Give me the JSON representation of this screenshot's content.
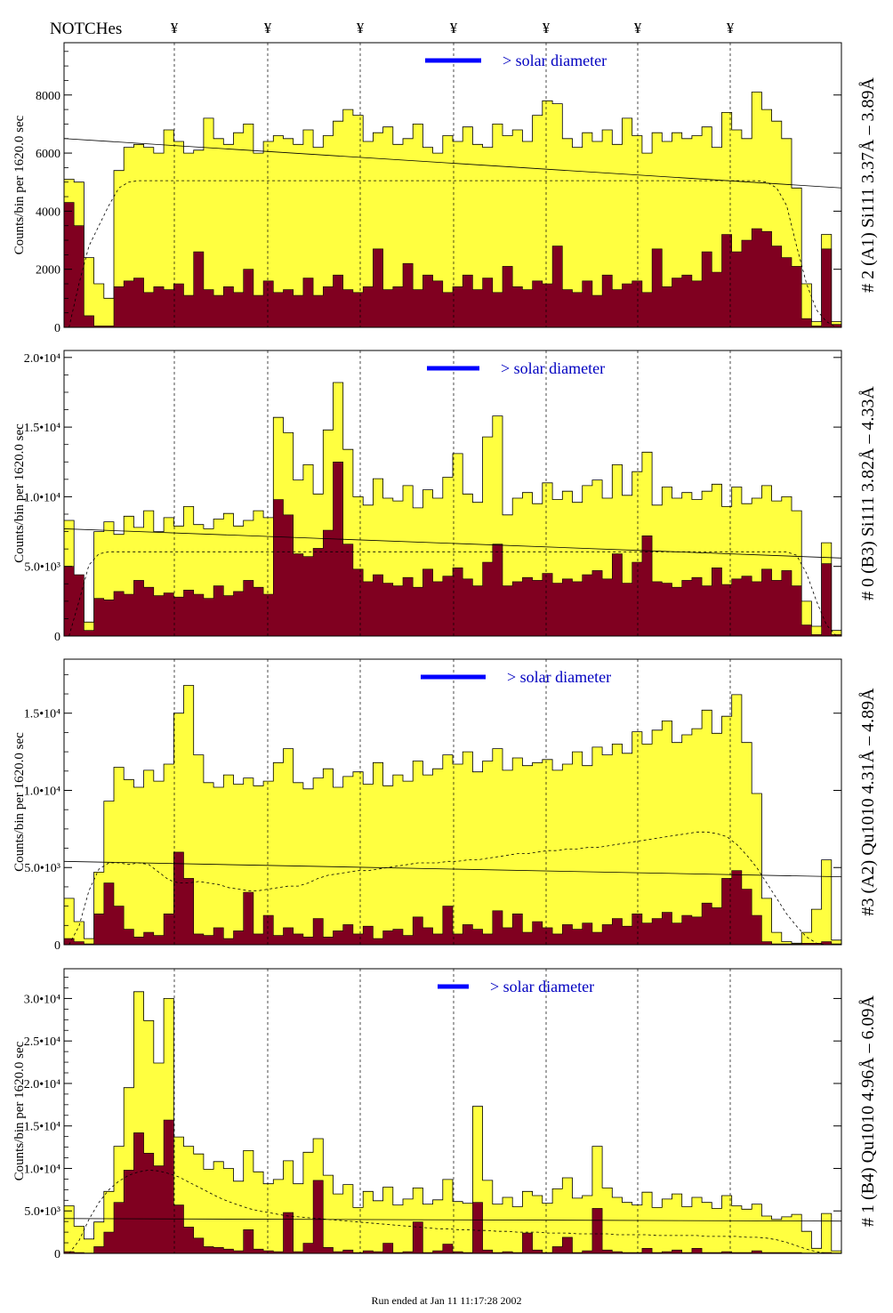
{
  "header": {
    "notches_label": "NOTCHes",
    "notch_symbol": "¥",
    "notch_count": 7
  },
  "footer": {
    "run_text": "Run ended at Jan 11 11:17:28 2002"
  },
  "colors": {
    "fill_total": "#ffff40",
    "fill_subset": "#800020",
    "legend_bar": "#0000ff",
    "legend_text": "#0000c0"
  },
  "chart_data": [
    {
      "type": "area",
      "title": "# 2 (A1) Si111  3.37Å – 3.89Å",
      "ylabel": "Counts/bin per   1620.0 sec",
      "legend": "> solar diameter",
      "ylim": [
        0,
        9800
      ],
      "yticks": [
        0,
        2000,
        4000,
        6000,
        8000
      ],
      "ytick_labels": [
        "0",
        "2000",
        "4000",
        "6000",
        "8000"
      ],
      "series_total": [
        5100,
        5000,
        2400,
        1500,
        1000,
        5400,
        6200,
        6300,
        6200,
        6000,
        6800,
        6400,
        6000,
        6100,
        7200,
        6500,
        6300,
        6700,
        7000,
        6000,
        6400,
        6600,
        6500,
        6300,
        6800,
        6200,
        6600,
        7100,
        7500,
        7300,
        6400,
        6700,
        6900,
        6300,
        6500,
        7000,
        6200,
        6000,
        6600,
        6400,
        6900,
        6300,
        6200,
        7000,
        6600,
        6800,
        6400,
        7300,
        7800,
        7700,
        6500,
        6200,
        6700,
        6400,
        6800,
        6300,
        7200,
        6600,
        6000,
        6700,
        6400,
        6700,
        6500,
        6600,
        6900,
        6200,
        7400,
        6800,
        6500,
        8100,
        7500,
        7100,
        6500,
        4800,
        1500,
        200,
        3200,
        200
      ],
      "series_subset": [
        4300,
        3500,
        400,
        50,
        50,
        1400,
        1600,
        1700,
        1200,
        1400,
        1300,
        1500,
        1100,
        2600,
        1300,
        1100,
        1400,
        1200,
        2000,
        1100,
        1600,
        1200,
        1300,
        1100,
        1700,
        1100,
        1400,
        1800,
        1300,
        1200,
        1400,
        2700,
        1300,
        1400,
        2200,
        1300,
        1800,
        1600,
        1200,
        1400,
        1800,
        1300,
        1700,
        1200,
        2100,
        1400,
        1300,
        1600,
        1500,
        2800,
        1300,
        1200,
        1600,
        1100,
        1800,
        1300,
        1500,
        1600,
        1200,
        2700,
        1400,
        1700,
        1800,
        1600,
        2600,
        1900,
        3200,
        2600,
        3000,
        3400,
        3300,
        2800,
        2400,
        2100,
        300,
        50,
        2700,
        100
      ],
      "baseline_start": 6500,
      "baseline_end": 4800,
      "model": [
        0,
        1500,
        2800,
        3500,
        4200,
        4800,
        5000,
        5050,
        5050,
        5050,
        5050,
        5050,
        5050,
        5050,
        5050,
        5050,
        5050,
        5050,
        5050,
        5050,
        5050,
        5050,
        5050,
        5050,
        5050,
        5050,
        5050,
        5050,
        5050,
        5050,
        5050,
        5050,
        5050,
        5050,
        5050,
        5050,
        5050,
        5050,
        5050,
        5050,
        5050,
        5050,
        5050,
        5050,
        5050,
        5050,
        5050,
        5050,
        5050,
        5050,
        5050,
        5050,
        5050,
        5050,
        5050,
        5050,
        5050,
        5050,
        5050,
        5050,
        5050,
        5050,
        5050,
        5050,
        5050,
        5050,
        5050,
        5050,
        5050,
        5050,
        5000,
        4800,
        4200,
        2800,
        1500,
        600,
        200,
        0
      ]
    },
    {
      "type": "area",
      "title": "# 0 (B3) Si111  3.82Å – 4.33Å",
      "ylabel": "Counts/bin per   1620.0 sec",
      "legend": "> solar diameter",
      "ylim": [
        0,
        20500
      ],
      "yticks": [
        0,
        5000,
        10000,
        15000,
        20000
      ],
      "ytick_labels": [
        "0",
        "5.0•10³",
        "1.0•10⁴",
        "1.5•10⁴",
        "2.0•10⁴"
      ],
      "series_total": [
        8300,
        4000,
        1000,
        7500,
        8200,
        7300,
        8600,
        7800,
        9000,
        7500,
        8500,
        7900,
        9300,
        8000,
        7700,
        8400,
        8800,
        7900,
        8300,
        9000,
        8500,
        15700,
        14600,
        11200,
        12300,
        10200,
        14800,
        18200,
        13400,
        10000,
        9400,
        11300,
        9900,
        9700,
        10800,
        9200,
        10500,
        9900,
        11400,
        13100,
        10200,
        9600,
        14300,
        15800,
        8700,
        9900,
        10300,
        9500,
        11000,
        9800,
        10400,
        9600,
        10800,
        11200,
        9900,
        12300,
        10100,
        11800,
        13200,
        9400,
        10700,
        9900,
        10300,
        9800,
        10400,
        10900,
        9300,
        10700,
        9500,
        9900,
        10800,
        9700,
        10000,
        9000,
        2500,
        700,
        6700,
        400
      ],
      "series_subset": [
        5000,
        4400,
        400,
        2700,
        2600,
        3200,
        3000,
        4000,
        3500,
        2900,
        3100,
        2800,
        3300,
        3000,
        2700,
        3600,
        2900,
        3200,
        4000,
        3500,
        3000,
        9800,
        8700,
        5900,
        5700,
        6300,
        7600,
        12500,
        6600,
        4800,
        3900,
        4400,
        3800,
        3600,
        4200,
        3500,
        4800,
        3900,
        4300,
        4900,
        4100,
        3600,
        5300,
        6600,
        3600,
        3900,
        4200,
        4000,
        4500,
        3800,
        4100,
        3900,
        4400,
        4700,
        4100,
        5900,
        3800,
        5300,
        7200,
        3900,
        3800,
        3500,
        4000,
        4200,
        3600,
        4900,
        3700,
        4100,
        4300,
        3900,
        4800,
        4000,
        4700,
        3600,
        800,
        100,
        5200,
        100
      ],
      "baseline_start": 7700,
      "baseline_end": 5600,
      "model": [
        0,
        2500,
        5100,
        5900,
        6050,
        6050,
        6050,
        6050,
        6050,
        6050,
        6050,
        6050,
        6050,
        6050,
        6050,
        6050,
        6050,
        6050,
        6050,
        6050,
        6050,
        6050,
        6050,
        6050,
        6050,
        6050,
        6050,
        6050,
        6050,
        6050,
        6050,
        6050,
        6050,
        6050,
        6050,
        6050,
        6050,
        6050,
        6050,
        6050,
        6050,
        6050,
        6050,
        6050,
        6050,
        6050,
        6050,
        6050,
        6050,
        6050,
        6050,
        6050,
        6050,
        6050,
        6050,
        6050,
        6050,
        6050,
        6050,
        6050,
        6050,
        6050,
        6050,
        6050,
        6050,
        6050,
        6050,
        6050,
        6050,
        6050,
        6050,
        6050,
        6050,
        5800,
        4500,
        2500,
        800,
        0
      ]
    },
    {
      "type": "area",
      "title": "#3 (A2) Qu1010  4.31Å – 4.89Å",
      "ylabel": "Counts/bin per   1620.0 sec",
      "legend": "> solar diameter",
      "ylim": [
        0,
        18500
      ],
      "yticks": [
        0,
        5000,
        10000,
        15000
      ],
      "ytick_labels": [
        "0",
        "5.0•10³",
        "1.0•10⁴",
        "1.5•10⁴"
      ],
      "series_total": [
        3000,
        1500,
        400,
        4700,
        9300,
        11500,
        10700,
        10200,
        11300,
        10600,
        11700,
        15000,
        16800,
        12300,
        10500,
        10200,
        11000,
        10400,
        10800,
        10300,
        10600,
        11800,
        12700,
        10500,
        10100,
        10800,
        11400,
        10200,
        10900,
        11200,
        10400,
        11800,
        10300,
        11000,
        10600,
        11900,
        11000,
        11400,
        12300,
        11700,
        12500,
        11200,
        11900,
        12700,
        11300,
        12100,
        11600,
        11800,
        12000,
        11300,
        11700,
        12500,
        11600,
        12800,
        12300,
        13000,
        12400,
        13800,
        13000,
        13900,
        14500,
        13100,
        13600,
        14000,
        15200,
        13700,
        14800,
        16200,
        13100,
        9800,
        3000,
        800,
        200,
        100,
        800,
        2300,
        5500,
        300
      ],
      "series_subset": [
        400,
        200,
        50,
        2000,
        4000,
        2500,
        1000,
        500,
        800,
        600,
        2000,
        6000,
        4300,
        700,
        600,
        1100,
        400,
        900,
        3400,
        700,
        1900,
        600,
        1100,
        700,
        500,
        1700,
        500,
        900,
        1300,
        700,
        1200,
        400,
        900,
        1000,
        600,
        1800,
        1100,
        700,
        2500,
        700,
        1300,
        1000,
        700,
        2200,
        1100,
        2000,
        800,
        1500,
        1100,
        700,
        1300,
        1000,
        1400,
        800,
        1300,
        1700,
        1200,
        2000,
        1400,
        1700,
        2100,
        1400,
        1900,
        1800,
        2700,
        2400,
        4300,
        4800,
        3600,
        1900,
        200,
        50,
        50,
        50,
        100,
        100,
        200,
        50
      ],
      "baseline_start": 5400,
      "baseline_end": 4400,
      "model": [
        0,
        1200,
        3500,
        4900,
        5300,
        5300,
        5200,
        5300,
        5200,
        4700,
        4200,
        4000,
        4000,
        4100,
        4000,
        3900,
        3700,
        3600,
        3500,
        3500,
        3600,
        3700,
        3800,
        3800,
        4000,
        4300,
        4500,
        4600,
        4700,
        4800,
        4800,
        4900,
        5000,
        5100,
        5200,
        5300,
        5300,
        5300,
        5400,
        5400,
        5500,
        5500,
        5600,
        5700,
        5800,
        5900,
        5900,
        6000,
        6100,
        6100,
        6200,
        6200,
        6300,
        6300,
        6400,
        6500,
        6600,
        6700,
        6800,
        6900,
        7000,
        7100,
        7200,
        7300,
        7300,
        7200,
        7000,
        6500,
        5800,
        5000,
        4000,
        3000,
        2000,
        1200,
        500,
        100,
        0,
        0
      ]
    },
    {
      "type": "area",
      "title": "# 1 (B4) Qu1010 4.96Å – 6.09Å",
      "ylabel": "Counts/bin per   1620.0 sec",
      "legend": "> solar diameter",
      "ylim": [
        0,
        33500
      ],
      "yticks": [
        0,
        5000,
        10000,
        15000,
        20000,
        25000,
        30000
      ],
      "ytick_labels": [
        "0",
        "5.0•10³",
        "1.0•10⁴",
        "1.5•10⁴",
        "2.0•10⁴",
        "2.5•10⁴",
        "3.0•10⁴"
      ],
      "series_total": [
        5600,
        3200,
        1700,
        3700,
        7300,
        12600,
        19500,
        30800,
        27400,
        22400,
        30000,
        13700,
        12600,
        11700,
        9900,
        10800,
        10000,
        8500,
        12100,
        9600,
        8200,
        8700,
        10900,
        8200,
        11900,
        13500,
        9200,
        7000,
        8100,
        5400,
        7300,
        6200,
        7800,
        5700,
        6400,
        7700,
        5800,
        6300,
        8700,
        6100,
        5900,
        17300,
        8600,
        5800,
        6600,
        5500,
        7300,
        6800,
        5900,
        7600,
        8900,
        6500,
        6800,
        12600,
        7700,
        6600,
        6000,
        5700,
        7200,
        5400,
        6400,
        7000,
        5500,
        6600,
        6000,
        5300,
        6800,
        5600,
        5200,
        5800,
        4400,
        4000,
        4300,
        4600,
        2600,
        600,
        4700,
        300
      ],
      "series_subset": [
        200,
        100,
        50,
        800,
        2500,
        6000,
        9800,
        14200,
        11800,
        10300,
        15700,
        5700,
        3100,
        1800,
        800,
        700,
        500,
        300,
        2800,
        500,
        300,
        200,
        4800,
        200,
        1200,
        8600,
        700,
        200,
        400,
        100,
        300,
        200,
        1200,
        100,
        200,
        3700,
        100,
        300,
        1100,
        200,
        100,
        6000,
        400,
        100,
        200,
        100,
        2400,
        400,
        100,
        800,
        1900,
        100,
        300,
        5300,
        400,
        200,
        100,
        100,
        600,
        100,
        200,
        400,
        100,
        600,
        100,
        100,
        200,
        100,
        100,
        300,
        100,
        100,
        100,
        100,
        50,
        50,
        100,
        50
      ],
      "baseline_start": 4100,
      "baseline_end": 3800,
      "model": [
        0,
        1500,
        4000,
        6000,
        7500,
        8500,
        9200,
        9600,
        9800,
        9700,
        9400,
        9000,
        8400,
        7800,
        7200,
        6600,
        6100,
        5700,
        5300,
        5000,
        4800,
        4600,
        4400,
        4300,
        4200,
        4100,
        4000,
        3900,
        3800,
        3700,
        3600,
        3500,
        3400,
        3300,
        3200,
        3100,
        3000,
        2900,
        2900,
        2800,
        2800,
        2700,
        2700,
        2600,
        2600,
        2500,
        2500,
        2500,
        2400,
        2400,
        2400,
        2300,
        2300,
        2300,
        2300,
        2200,
        2200,
        2200,
        2200,
        2100,
        2100,
        2100,
        2100,
        2100,
        2000,
        2000,
        2000,
        2000,
        1900,
        1900,
        1800,
        1600,
        1300,
        900,
        500,
        200,
        0,
        0
      ]
    }
  ]
}
